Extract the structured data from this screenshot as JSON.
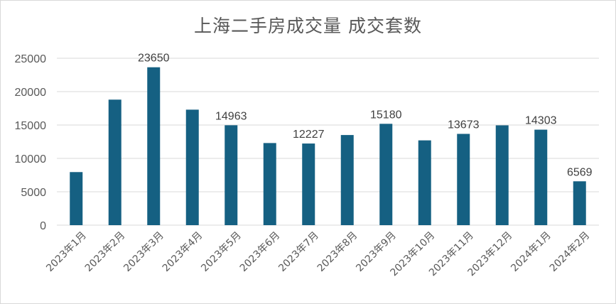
{
  "chart_data": {
    "type": "bar",
    "title": "上海二手房成交量 成交套数",
    "xlabel": "",
    "ylabel": "",
    "ylim": [
      0,
      25000
    ],
    "yticks": [
      "0",
      "5000",
      "10000",
      "15000",
      "20000",
      "25000"
    ],
    "grid": true,
    "legend": "none",
    "color": "#156082",
    "categories": [
      "2023年1月",
      "2023年2月",
      "2023年3月",
      "2023年4月",
      "2023年5月",
      "2023年6月",
      "2023年7月",
      "2023年8月",
      "2023年9月",
      "2023年10月",
      "2023年11月",
      "2023年12月",
      "2024年1月",
      "2024年2月"
    ],
    "values": [
      7950,
      18800,
      23650,
      17300,
      14963,
      12300,
      12227,
      13500,
      15180,
      12700,
      13673,
      14950,
      14303,
      6569
    ],
    "data_labels": [
      "",
      "",
      "23650",
      "",
      "14963",
      "",
      "12227",
      "",
      "15180",
      "",
      "13673",
      "",
      "14303",
      "6569"
    ]
  }
}
